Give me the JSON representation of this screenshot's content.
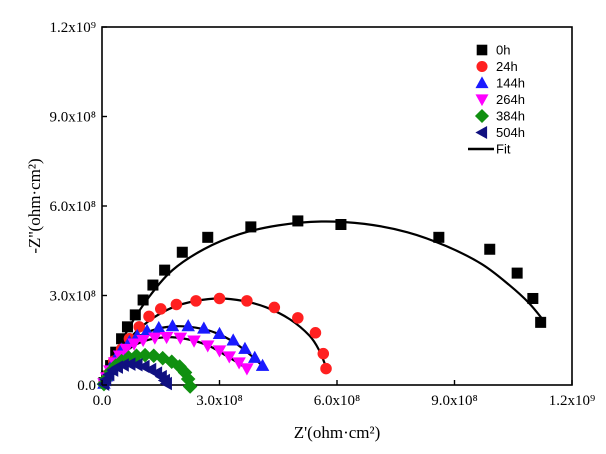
{
  "chart_data": {
    "type": "scatter",
    "xlabel": "Z'(ohm·cm²)",
    "ylabel": "-Z''(ohm·cm²)",
    "xlim": [
      0,
      1200000000.0
    ],
    "ylim": [
      0,
      1200000000.0
    ],
    "x_ticks": [
      0,
      300000000.0,
      600000000.0,
      900000000.0,
      1200000000.0
    ],
    "y_ticks": [
      0,
      300000000.0,
      600000000.0,
      900000000.0,
      1200000000.0
    ],
    "x_tick_labels": [
      "0.0",
      "3.0x10⁸",
      "6.0x10⁸",
      "9.0x10⁸",
      "1.2x10⁹"
    ],
    "y_tick_labels": [
      "0.0",
      "3.0x10⁸",
      "6.0x10⁸",
      "9.0x10⁸",
      "1.2x10⁹"
    ],
    "legend_position": "top-right",
    "series": [
      {
        "name": "0h",
        "marker": "square",
        "color": "#000000",
        "points": [
          [
            5000000.0,
            8000000.0
          ],
          [
            12000000.0,
            30000000.0
          ],
          [
            22000000.0,
            65000000.0
          ],
          [
            35000000.0,
            110000000.0
          ],
          [
            50000000.0,
            155000000.0
          ],
          [
            65000000.0,
            195000000.0
          ],
          [
            85000000.0,
            235000000.0
          ],
          [
            105000000.0,
            285000000.0
          ],
          [
            130000000.0,
            335000000.0
          ],
          [
            160000000.0,
            385000000.0
          ],
          [
            205000000.0,
            445000000.0
          ],
          [
            270000000.0,
            495000000.0
          ],
          [
            380000000.0,
            530000000.0
          ],
          [
            500000000.0,
            550000000.0
          ],
          [
            610000000.0,
            538000000.0
          ],
          [
            860000000.0,
            495000000.0
          ],
          [
            990000000.0,
            455000000.0
          ],
          [
            1060000000.0,
            375000000.0
          ],
          [
            1100000000.0,
            290000000.0
          ],
          [
            1120000000.0,
            210000000.0
          ]
        ]
      },
      {
        "name": "24h",
        "marker": "circle",
        "color": "#ff2020",
        "points": [
          [
            5000000.0,
            5000000.0
          ],
          [
            15000000.0,
            35000000.0
          ],
          [
            30000000.0,
            80000000.0
          ],
          [
            50000000.0,
            120000000.0
          ],
          [
            70000000.0,
            155000000.0
          ],
          [
            95000000.0,
            195000000.0
          ],
          [
            120000000.0,
            230000000.0
          ],
          [
            150000000.0,
            255000000.0
          ],
          [
            190000000.0,
            270000000.0
          ],
          [
            240000000.0,
            282000000.0
          ],
          [
            300000000.0,
            290000000.0
          ],
          [
            370000000.0,
            282000000.0
          ],
          [
            440000000.0,
            260000000.0
          ],
          [
            500000000.0,
            225000000.0
          ],
          [
            545000000.0,
            175000000.0
          ],
          [
            565000000.0,
            105000000.0
          ],
          [
            572000000.0,
            55000000.0
          ]
        ]
      },
      {
        "name": "144h",
        "marker": "triangle-up",
        "color": "#1a1aff",
        "points": [
          [
            5000000.0,
            5000000.0
          ],
          [
            12000000.0,
            30000000.0
          ],
          [
            22000000.0,
            60000000.0
          ],
          [
            35000000.0,
            90000000.0
          ],
          [
            50000000.0,
            120000000.0
          ],
          [
            70000000.0,
            145000000.0
          ],
          [
            90000000.0,
            165000000.0
          ],
          [
            115000000.0,
            182000000.0
          ],
          [
            145000000.0,
            192000000.0
          ],
          [
            180000000.0,
            198000000.0
          ],
          [
            220000000.0,
            198000000.0
          ],
          [
            260000000.0,
            190000000.0
          ],
          [
            300000000.0,
            172000000.0
          ],
          [
            335000000.0,
            150000000.0
          ],
          [
            365000000.0,
            122000000.0
          ],
          [
            390000000.0,
            92000000.0
          ],
          [
            410000000.0,
            65000000.0
          ]
        ]
      },
      {
        "name": "264h",
        "marker": "triangle-down",
        "color": "#ff00ff",
        "points": [
          [
            5000000.0,
            5000000.0
          ],
          [
            12000000.0,
            25000000.0
          ],
          [
            20000000.0,
            48000000.0
          ],
          [
            32000000.0,
            75000000.0
          ],
          [
            45000000.0,
            98000000.0
          ],
          [
            62000000.0,
            120000000.0
          ],
          [
            82000000.0,
            138000000.0
          ],
          [
            105000000.0,
            150000000.0
          ],
          [
            135000000.0,
            158000000.0
          ],
          [
            165000000.0,
            160000000.0
          ],
          [
            200000000.0,
            158000000.0
          ],
          [
            235000000.0,
            148000000.0
          ],
          [
            270000000.0,
            132000000.0
          ],
          [
            300000000.0,
            115000000.0
          ],
          [
            325000000.0,
            95000000.0
          ],
          [
            350000000.0,
            75000000.0
          ],
          [
            370000000.0,
            55000000.0
          ]
        ]
      },
      {
        "name": "384h",
        "marker": "diamond",
        "color": "#109010",
        "points": [
          [
            5000000.0,
            3000000.0
          ],
          [
            12000000.0,
            22000000.0
          ],
          [
            22000000.0,
            45000000.0
          ],
          [
            35000000.0,
            65000000.0
          ],
          [
            50000000.0,
            80000000.0
          ],
          [
            68000000.0,
            92000000.0
          ],
          [
            88000000.0,
            98000000.0
          ],
          [
            110000000.0,
            100000000.0
          ],
          [
            132000000.0,
            98000000.0
          ],
          [
            155000000.0,
            90000000.0
          ],
          [
            178000000.0,
            78000000.0
          ],
          [
            198000000.0,
            62000000.0
          ],
          [
            212000000.0,
            42000000.0
          ],
          [
            220000000.0,
            20000000.0
          ],
          [
            225000000.0,
            -5000000.0
          ]
        ]
      },
      {
        "name": "504h",
        "marker": "triangle-left",
        "color": "#101080",
        "points": [
          [
            5000000.0,
            3000000.0
          ],
          [
            10000000.0,
            18000000.0
          ],
          [
            18000000.0,
            35000000.0
          ],
          [
            28000000.0,
            50000000.0
          ],
          [
            40000000.0,
            60000000.0
          ],
          [
            55000000.0,
            67000000.0
          ],
          [
            72000000.0,
            70000000.0
          ],
          [
            90000000.0,
            68000000.0
          ],
          [
            108000000.0,
            62000000.0
          ],
          [
            125000000.0,
            52000000.0
          ],
          [
            140000000.0,
            40000000.0
          ],
          [
            152000000.0,
            28000000.0
          ],
          [
            160000000.0,
            15000000.0
          ],
          [
            165000000.0,
            5000000.0
          ]
        ]
      }
    ],
    "fit": {
      "name": "Fit",
      "color": "#000000",
      "curves": [
        [
          [
            5000000.0,
            5000000.0
          ],
          [
            30000000.0,
            90000000.0
          ],
          [
            70000000.0,
            195000000.0
          ],
          [
            120000000.0,
            295000000.0
          ],
          [
            180000000.0,
            385000000.0
          ],
          [
            260000000.0,
            455000000.0
          ],
          [
            350000000.0,
            505000000.0
          ],
          [
            450000000.0,
            535000000.0
          ],
          [
            560000000.0,
            548000000.0
          ],
          [
            670000000.0,
            540000000.0
          ],
          [
            780000000.0,
            512000000.0
          ],
          [
            880000000.0,
            465000000.0
          ],
          [
            970000000.0,
            405000000.0
          ],
          [
            1040000000.0,
            335000000.0
          ],
          [
            1090000000.0,
            275000000.0
          ],
          [
            1125000000.0,
            220000000.0
          ]
        ],
        [
          [
            5000000.0,
            5000000.0
          ],
          [
            30000000.0,
            80000000.0
          ],
          [
            70000000.0,
            155000000.0
          ],
          [
            120000000.0,
            215000000.0
          ],
          [
            180000000.0,
            260000000.0
          ],
          [
            240000000.0,
            282000000.0
          ],
          [
            300000000.0,
            290000000.0
          ],
          [
            360000000.0,
            282000000.0
          ],
          [
            420000000.0,
            260000000.0
          ],
          [
            480000000.0,
            220000000.0
          ],
          [
            530000000.0,
            165000000.0
          ],
          [
            555000000.0,
            115000000.0
          ],
          [
            572000000.0,
            60000000.0
          ]
        ],
        [
          [
            5000000.0,
            5000000.0
          ],
          [
            25000000.0,
            65000000.0
          ],
          [
            55000000.0,
            120000000.0
          ],
          [
            90000000.0,
            160000000.0
          ],
          [
            140000000.0,
            188000000.0
          ],
          [
            190000000.0,
            197000000.0
          ],
          [
            240000000.0,
            192000000.0
          ],
          [
            290000000.0,
            175000000.0
          ],
          [
            335000000.0,
            145000000.0
          ],
          [
            375000000.0,
            105000000.0
          ],
          [
            405000000.0,
            70000000.0
          ]
        ],
        [
          [
            5000000.0,
            5000000.0
          ],
          [
            25000000.0,
            55000000.0
          ],
          [
            55000000.0,
            105000000.0
          ],
          [
            90000000.0,
            138000000.0
          ],
          [
            135000000.0,
            156000000.0
          ],
          [
            180000000.0,
            160000000.0
          ],
          [
            230000000.0,
            150000000.0
          ],
          [
            275000000.0,
            130000000.0
          ],
          [
            315000000.0,
            100000000.0
          ],
          [
            350000000.0,
            72000000.0
          ],
          [
            370000000.0,
            55000000.0
          ]
        ],
        [
          [
            5000000.0,
            3000000.0
          ],
          [
            25000000.0,
            48000000.0
          ],
          [
            55000000.0,
            82000000.0
          ],
          [
            90000000.0,
            98000000.0
          ],
          [
            125000000.0,
            99000000.0
          ],
          [
            160000000.0,
            88000000.0
          ],
          [
            190000000.0,
            68000000.0
          ],
          [
            210000000.0,
            42000000.0
          ],
          [
            222000000.0,
            15000000.0
          ],
          [
            225000000.0,
            0.0
          ]
        ],
        [
          [
            5000000.0,
            3000000.0
          ],
          [
            20000000.0,
            38000000.0
          ],
          [
            45000000.0,
            62000000.0
          ],
          [
            75000000.0,
            70000000.0
          ],
          [
            105000000.0,
            63000000.0
          ],
          [
            130000000.0,
            48000000.0
          ],
          [
            150000000.0,
            30000000.0
          ],
          [
            162000000.0,
            12000000.0
          ],
          [
            165000000.0,
            5000000.0
          ]
        ]
      ]
    }
  }
}
